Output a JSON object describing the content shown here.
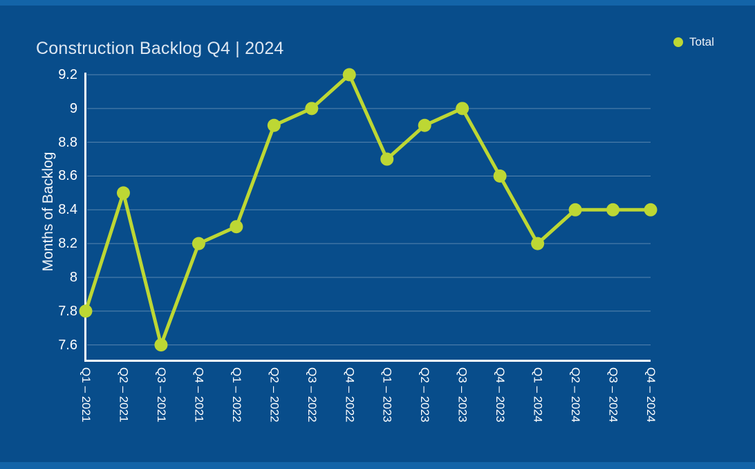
{
  "header": {
    "title": "Construction Backlog Q4 | 2024"
  },
  "legend": {
    "label": "Total",
    "marker_color": "#bdd734"
  },
  "chart_data": {
    "type": "line",
    "title": "Construction Backlog Q4 | 2024",
    "xlabel": "",
    "ylabel": "Months of Backlog",
    "categories": [
      "Q1 – 2021",
      "Q2 – 2021",
      "Q3 – 2021",
      "Q4 – 2021",
      "Q1 – 2022",
      "Q2 – 2022",
      "Q3 – 2022",
      "Q4 – 2022",
      "Q1 – 2023",
      "Q2 – 2023",
      "Q3 – 2023",
      "Q4 – 2023",
      "Q1 – 2024",
      "Q2 – 2024",
      "Q3 – 2024",
      "Q4 – 2024"
    ],
    "series": [
      {
        "name": "Total",
        "color": "#bdd734",
        "values": [
          7.8,
          8.5,
          7.6,
          8.2,
          8.3,
          8.9,
          9.0,
          9.2,
          8.7,
          8.9,
          9.0,
          8.6,
          8.2,
          8.4,
          8.4,
          8.4
        ]
      }
    ],
    "ylim": [
      7.5,
      9.2
    ],
    "yticks": [
      7.6,
      7.8,
      8.0,
      8.2,
      8.4,
      8.6,
      8.8,
      9.0,
      9.2
    ],
    "grid": true,
    "x_label_rotation": 90,
    "legend_position": "top-right",
    "colors": {
      "series": "#bdd734",
      "plot_background": "#084d8b",
      "page_background": "#1364a8",
      "axis": "#ffffff",
      "grid_line": "#ffffff",
      "text": "#ffffff",
      "title_text": "#dde7f2"
    }
  }
}
